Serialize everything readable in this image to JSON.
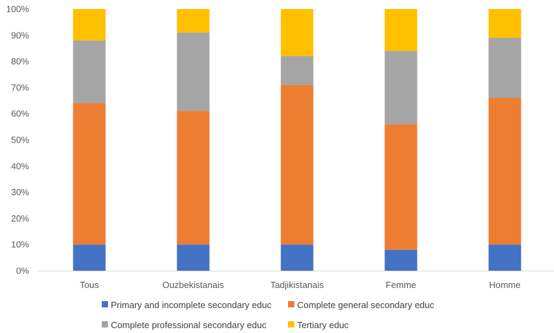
{
  "chart_data": {
    "type": "bar",
    "stacked": true,
    "percent": true,
    "categories": [
      "Tous",
      "Ouzbekistanais",
      "Tadjikistanais",
      "Femme",
      "Homme"
    ],
    "series": [
      {
        "name": "Primary and incomplete secondary educ",
        "color": "#4472C4",
        "values": [
          10,
          10,
          10,
          8,
          10
        ]
      },
      {
        "name": "Complete general secondary educ",
        "color": "#ED7D31",
        "values": [
          54,
          51,
          61,
          48,
          56
        ]
      },
      {
        "name": "Complete professional secondary educ",
        "color": "#A5A5A5",
        "values": [
          24,
          30,
          11,
          28,
          23
        ]
      },
      {
        "name": "Tertiary educ",
        "color": "#FFC000",
        "values": [
          12,
          9,
          18,
          16,
          11
        ]
      }
    ],
    "ylim": [
      0,
      100
    ],
    "yticks": [
      "0%",
      "10%",
      "20%",
      "30%",
      "40%",
      "50%",
      "60%",
      "70%",
      "80%",
      "90%",
      "100%"
    ],
    "grid": false,
    "legend_position": "bottom"
  }
}
